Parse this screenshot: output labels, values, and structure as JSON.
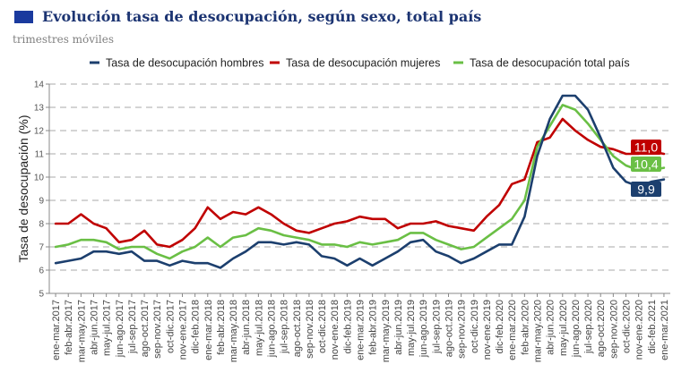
{
  "header": {
    "title": "Evolución tasa de desocupación, según sexo, total país",
    "subtitle": "trimestres móviles",
    "accent_color": "#1a3a9e"
  },
  "chart_data": {
    "type": "line",
    "title": "Evolución tasa de desocupación, según sexo, total país",
    "subtitle": "trimestres móviles",
    "xlabel": "",
    "ylabel": "Tasa de desocupación (%)",
    "ylim": [
      5,
      14
    ],
    "yticks": [
      "5",
      "6",
      "7",
      "8",
      "9",
      "10",
      "11",
      "12",
      "13",
      "14"
    ],
    "grid": "horizontal dashed",
    "legend_position": "top",
    "categories": [
      "ene-mar.2017",
      "feb-abr.2017",
      "mar-may.2017",
      "abr-jun.2017",
      "may-jul.2017",
      "jun-ago.2017",
      "jul-sep.2017",
      "ago-oct.2017",
      "sep-nov.2017",
      "oct-dic.2017",
      "nov-ene.2017",
      "dic-feb.2018",
      "ene-mar.2018",
      "feb-abr.2018",
      "mar-may.2018",
      "abr-jun.2018",
      "may-jul.2018",
      "jun-ago.2018",
      "jul-sep.2018",
      "ago-oct.2018",
      "sep-nov.2018",
      "oct-dic.2018",
      "nov-ene.2018",
      "dic-feb.2019",
      "ene-mar.2019",
      "feb-abr.2019",
      "mar-may.2019",
      "abr-jun.2019",
      "may-jul.2019",
      "jun-ago.2019",
      "jul-sep.2019",
      "ago-oct.2019",
      "sep-nov.2019",
      "oct-dic.2019",
      "nov-ene.2019",
      "dic-feb.2020",
      "ene-mar.2020",
      "feb-abr.2020",
      "mar-may.2020",
      "abr-jun.2020",
      "may-jul.2020",
      "jun-ago.2020",
      "jul-sep.2020",
      "ago-oct.2020",
      "sep-nov.2020",
      "oct-dic.2020",
      "nov-ene.2020",
      "dic-feb.2021",
      "ene-mar.2021"
    ],
    "series": [
      {
        "name": "Tasa de desocupación hombres",
        "color": "#1c3f6e",
        "end_label": "9,9",
        "values": [
          6.3,
          6.4,
          6.5,
          6.8,
          6.8,
          6.7,
          6.8,
          6.4,
          6.4,
          6.2,
          6.4,
          6.3,
          6.3,
          6.1,
          6.5,
          6.8,
          7.2,
          7.2,
          7.1,
          7.2,
          7.1,
          6.6,
          6.5,
          6.2,
          6.5,
          6.2,
          6.5,
          6.8,
          7.2,
          7.3,
          6.8,
          6.6,
          6.3,
          6.5,
          6.8,
          7.1,
          7.1,
          8.3,
          10.9,
          12.5,
          13.5,
          13.5,
          12.9,
          11.7,
          10.4,
          9.8,
          9.6,
          9.8,
          9.9
        ]
      },
      {
        "name": "Tasa de desocupación mujeres",
        "color": "#c00000",
        "end_label": "11,0",
        "values": [
          8.0,
          8.0,
          8.4,
          8.0,
          7.8,
          7.2,
          7.3,
          7.7,
          7.1,
          7.0,
          7.3,
          7.8,
          8.7,
          8.2,
          8.5,
          8.4,
          8.7,
          8.4,
          8.0,
          7.7,
          7.6,
          7.8,
          8.0,
          8.1,
          8.3,
          8.2,
          8.2,
          7.8,
          8.0,
          8.0,
          8.1,
          7.9,
          7.8,
          7.7,
          8.3,
          8.8,
          9.7,
          9.9,
          11.5,
          11.7,
          12.5,
          12.0,
          11.6,
          11.3,
          11.2,
          11.0,
          11.0,
          11.1,
          11.0
        ]
      },
      {
        "name": "Tasa de desocupación total país",
        "color": "#6abf45",
        "end_label": "10,4",
        "values": [
          7.0,
          7.1,
          7.3,
          7.3,
          7.2,
          6.9,
          7.0,
          7.0,
          6.7,
          6.5,
          6.8,
          7.0,
          7.4,
          7.0,
          7.4,
          7.5,
          7.8,
          7.7,
          7.5,
          7.4,
          7.3,
          7.1,
          7.1,
          7.0,
          7.2,
          7.1,
          7.2,
          7.3,
          7.6,
          7.6,
          7.3,
          7.1,
          6.9,
          7.0,
          7.4,
          7.8,
          8.2,
          9.0,
          11.3,
          12.2,
          13.1,
          12.9,
          12.3,
          11.6,
          10.9,
          10.5,
          10.3,
          10.3,
          10.4
        ]
      }
    ]
  }
}
